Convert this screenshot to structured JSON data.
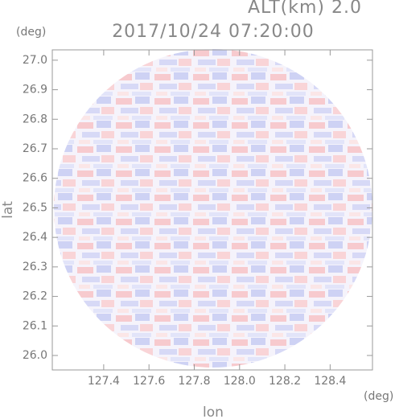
{
  "chart_data": {
    "type": "heatmap",
    "title": "2017/10/24 07:20:00",
    "subtitle": "ALT(km) 2.0",
    "x_label": "lon",
    "y_label": "lat",
    "x_unit": "(deg)",
    "y_unit": "(deg)",
    "xlim": [
      127.173,
      128.587
    ],
    "ylim": [
      25.951,
      27.035
    ],
    "xticks": [
      127.4,
      127.6,
      127.8,
      {
        "value": 128.0,
        "label": "128.0"
      },
      128.2,
      128.4
    ],
    "yticks": [
      {
        "value": 26.0,
        "label": "26.0"
      },
      26.1,
      26.2,
      26.3,
      26.4,
      26.5,
      26.6,
      26.7,
      26.8,
      26.9,
      {
        "value": 27.0,
        "label": "27.0"
      }
    ]
  }
}
